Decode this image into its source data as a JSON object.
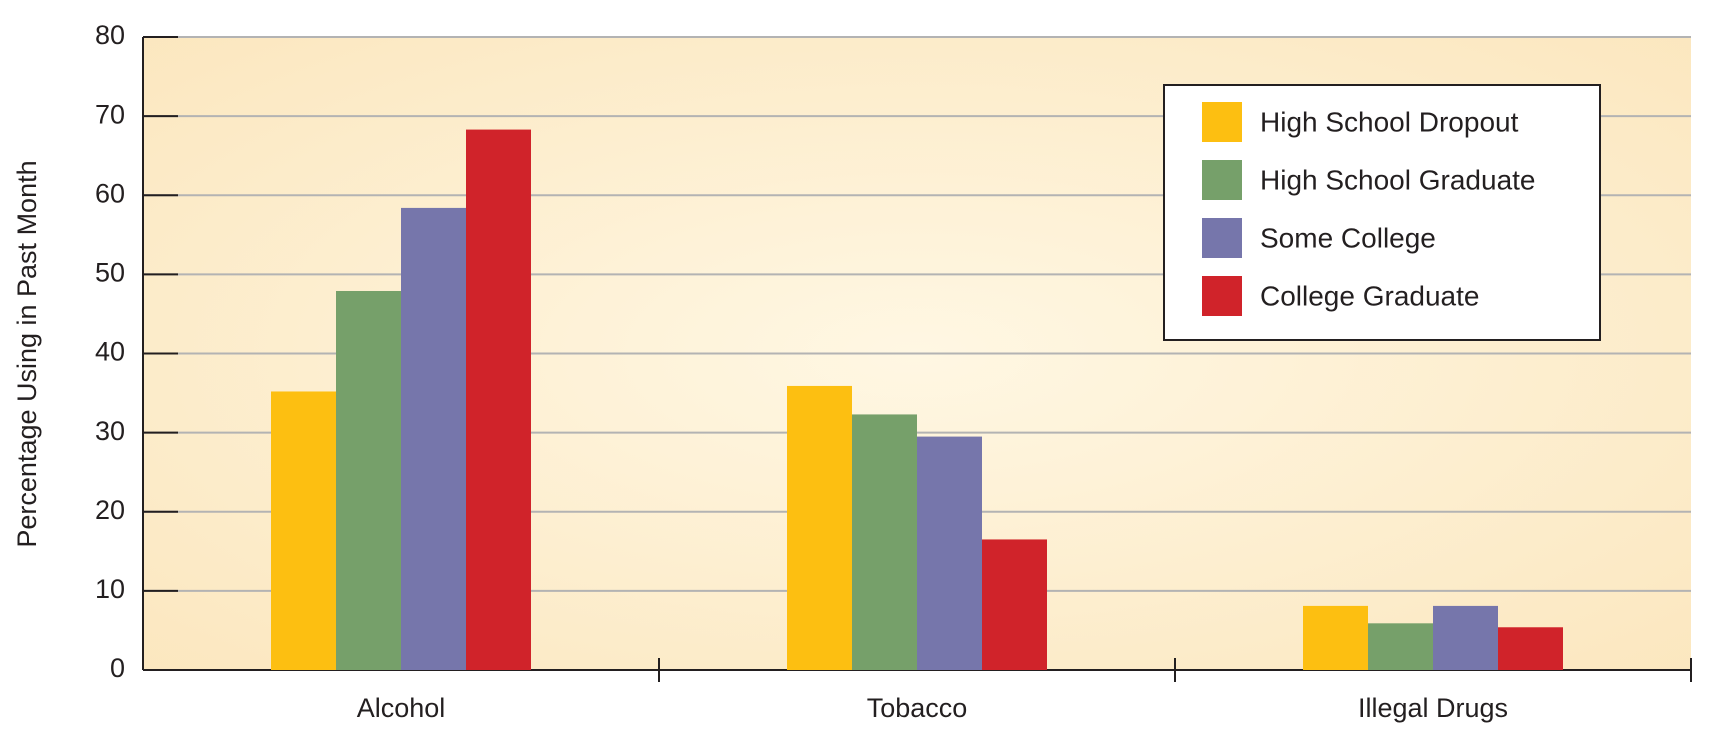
{
  "chart_data": {
    "type": "bar",
    "title": "",
    "xlabel": "",
    "ylabel": "Percentage Using in Past Month",
    "ylim": [
      0,
      80
    ],
    "yticks": [
      0,
      10,
      20,
      30,
      40,
      50,
      60,
      70,
      80
    ],
    "grid": true,
    "legend_position": "top-right",
    "categories": [
      "Alcohol",
      "Tobacco",
      "Illegal Drugs"
    ],
    "series": [
      {
        "name": "High School Dropout",
        "color": "#fdbf11",
        "values": [
          35.2,
          35.9,
          8.1
        ]
      },
      {
        "name": "High School Graduate",
        "color": "#76a06a",
        "values": [
          47.9,
          32.3,
          5.9
        ]
      },
      {
        "name": "Some College",
        "color": "#7676ab",
        "values": [
          58.4,
          29.5,
          8.1
        ]
      },
      {
        "name": "College Graduate",
        "color": "#d0232a",
        "values": [
          68.3,
          16.5,
          5.4
        ]
      }
    ],
    "colors": {
      "plot_background": "#fdefd0",
      "gridline": "#b3b3b3",
      "axis": "#231f20"
    }
  }
}
